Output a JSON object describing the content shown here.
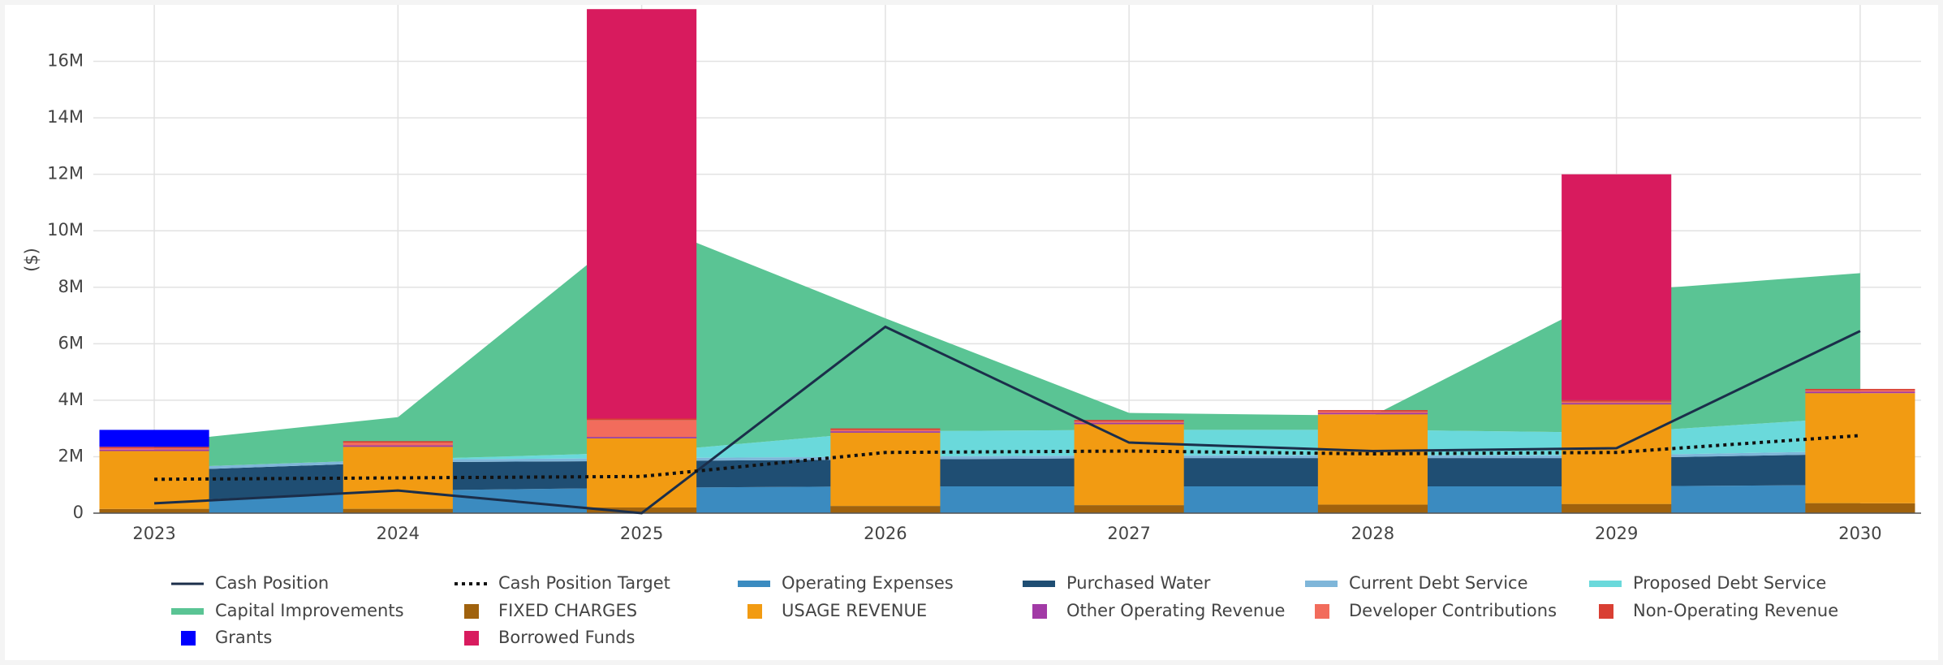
{
  "chart_data": {
    "type": "combo",
    "y_label": "($)",
    "x": [
      2023,
      2024,
      2025,
      2026,
      2027,
      2028,
      2029,
      2030
    ],
    "xlim": [
      2022.75,
      2030.25
    ],
    "ylim": [
      0,
      18000000
    ],
    "yticks": [
      0,
      {
        "value": 2000000,
        "label": "2M"
      },
      {
        "value": 4000000,
        "label": "4M"
      },
      {
        "value": 6000000,
        "label": "6M"
      },
      {
        "value": 8000000,
        "label": "8M"
      },
      {
        "value": 10000000,
        "label": "10M"
      },
      {
        "value": 12000000,
        "label": "12M"
      },
      {
        "value": 14000000,
        "label": "14M"
      },
      {
        "value": 16000000,
        "label": "16M"
      }
    ],
    "grid": true,
    "series": [
      {
        "name": "Cash Position",
        "kind": "line",
        "color": "#1b2e4a",
        "values": [
          350000,
          800000,
          0,
          6600000,
          2500000,
          2200000,
          2300000,
          6450000
        ]
      },
      {
        "name": "Cash Position Target",
        "kind": "line",
        "dashed": true,
        "color": "#111111",
        "values": [
          1200000,
          1250000,
          1300000,
          2150000,
          2200000,
          2100000,
          2150000,
          2750000
        ]
      },
      {
        "name": "Operating Expenses",
        "kind": "area",
        "color": "#3b8bc0",
        "values": [
          400000,
          800000,
          900000,
          950000,
          950000,
          950000,
          950000,
          1000000
        ]
      },
      {
        "name": "Purchased Water",
        "kind": "area",
        "color": "#1f4e73",
        "values": [
          1100000,
          1000000,
          950000,
          950000,
          1000000,
          1000000,
          1000000,
          1100000
        ]
      },
      {
        "name": "Current Debt Service",
        "kind": "area",
        "color": "#7fb6d9",
        "values": [
          100000,
          100000,
          100000,
          100000,
          100000,
          100000,
          100000,
          100000
        ]
      },
      {
        "name": "Proposed Debt Service",
        "kind": "area",
        "color": "#6ad9db",
        "values": [
          0,
          0,
          200000,
          900000,
          900000,
          900000,
          800000,
          1200000
        ]
      },
      {
        "name": "Capital Improvements",
        "kind": "area",
        "color": "#5ac494",
        "values": [
          900000,
          1500000,
          8200000,
          4000000,
          600000,
          500000,
          5000000,
          5100000
        ]
      },
      {
        "name": "FIXED CHARGES",
        "kind": "bar",
        "color": "#a0620d",
        "values": [
          150000,
          150000,
          200000,
          250000,
          280000,
          300000,
          320000,
          350000
        ]
      },
      {
        "name": "USAGE REVENUE",
        "kind": "bar",
        "color": "#f29b12",
        "values": [
          2050000,
          2200000,
          2450000,
          2600000,
          2870000,
          3200000,
          3530000,
          3900000
        ]
      },
      {
        "name": "Other Operating Revenue",
        "kind": "bar",
        "color": "#a23aa6",
        "values": [
          50000,
          50000,
          50000,
          50000,
          50000,
          50000,
          50000,
          50000
        ]
      },
      {
        "name": "Developer Contributions",
        "kind": "bar",
        "color": "#f26c5c",
        "values": [
          50000,
          100000,
          600000,
          50000,
          50000,
          50000,
          50000,
          50000
        ]
      },
      {
        "name": "Non-Operating Revenue",
        "kind": "bar",
        "color": "#d93f33",
        "values": [
          50000,
          50000,
          50000,
          50000,
          50000,
          50000,
          50000,
          50000
        ]
      },
      {
        "name": "Grants",
        "kind": "bar",
        "color": "#0000ff",
        "values": [
          600000,
          0,
          0,
          0,
          0,
          0,
          0,
          0
        ]
      },
      {
        "name": "Borrowed Funds",
        "kind": "bar",
        "color": "#d81b5e",
        "values": [
          0,
          0,
          14500000,
          0,
          0,
          0,
          8000000,
          0
        ]
      }
    ]
  }
}
